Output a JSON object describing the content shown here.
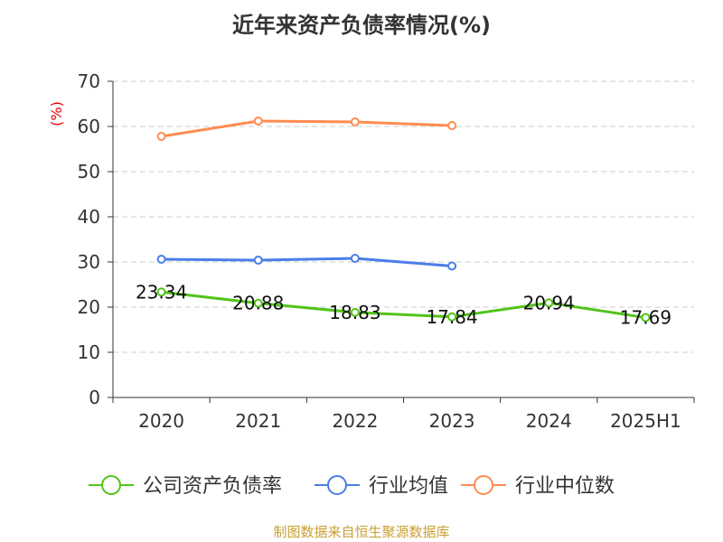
{
  "chart_data": {
    "type": "line",
    "title": "近年来资产负债率情况(%)",
    "ylabel": "(%)",
    "ylim": [
      0,
      70
    ],
    "yticks": [
      0,
      10,
      20,
      30,
      40,
      50,
      60,
      70
    ],
    "grid": true,
    "legend_position": "bottom",
    "categories": [
      "2020",
      "2021",
      "2022",
      "2023",
      "2024",
      "2025H1"
    ],
    "series": [
      {
        "name": "公司资产负债率",
        "color": "#52c41a",
        "values": [
          23.34,
          20.88,
          18.83,
          17.84,
          20.94,
          17.69
        ],
        "labels": [
          "23.34",
          "20.88",
          "18.83",
          "17.84",
          "20.94",
          "17.69"
        ]
      },
      {
        "name": "行业均值",
        "color": "#4a7ee8",
        "values": [
          30.6,
          30.4,
          30.8,
          29.1,
          null,
          null
        ]
      },
      {
        "name": "行业中位数",
        "color": "#ff8c50",
        "values": [
          57.8,
          61.2,
          61.0,
          60.2,
          null,
          null
        ]
      }
    ]
  },
  "source": "制图数据来自恒生聚源数据库"
}
